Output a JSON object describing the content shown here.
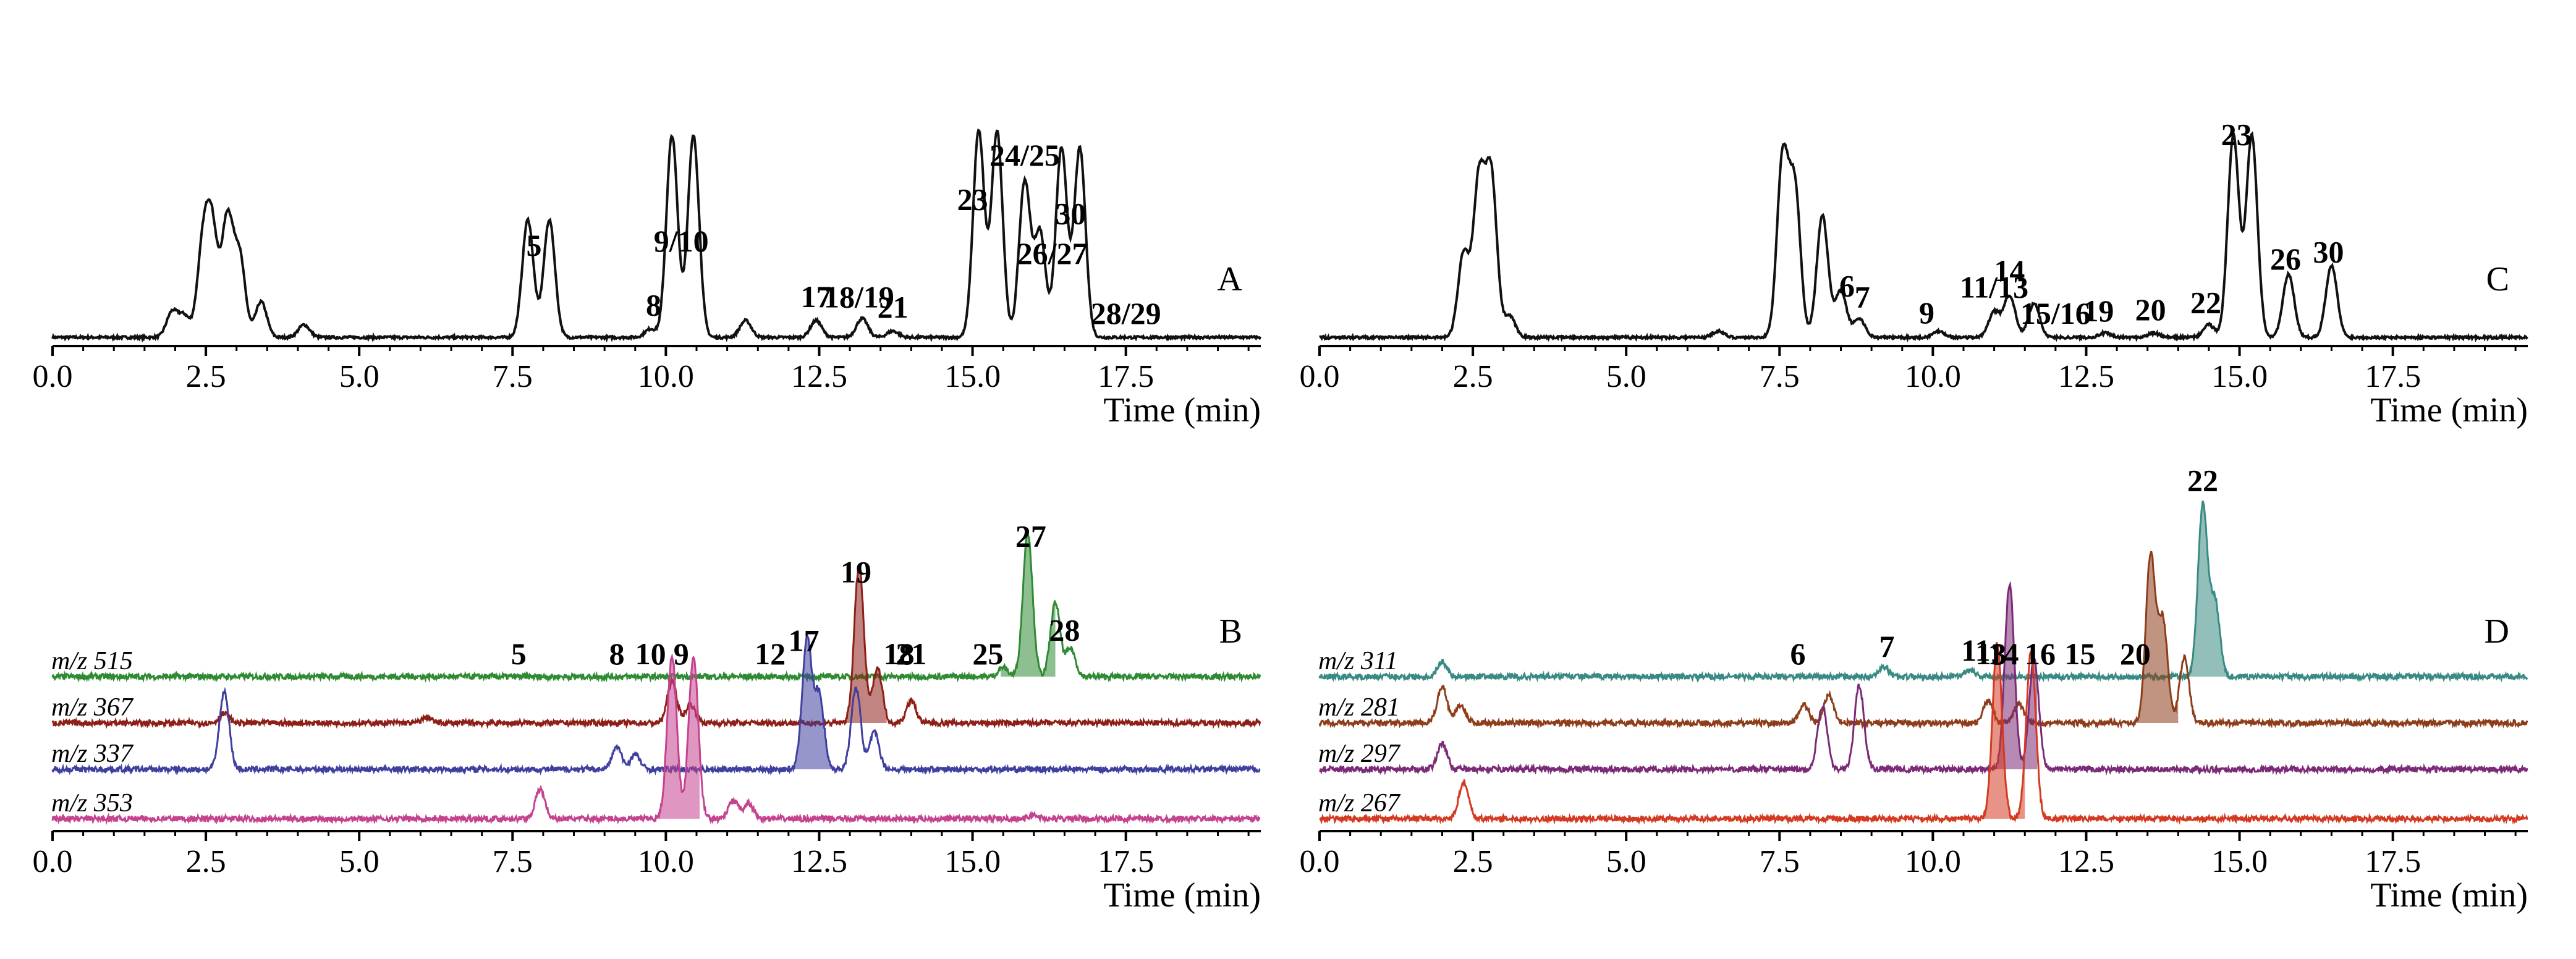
{
  "chart_data": [
    {
      "panel": "A",
      "type": "line",
      "xlabel": "Time (min)",
      "xlim": [
        0,
        19.7
      ],
      "xticks": [
        "0.0",
        "2.5",
        "5.0",
        "7.5",
        "10.0",
        "12.5",
        "15.0",
        "17.5"
      ],
      "peaks": [
        {
          "t": 1.95,
          "h": 0.12
        },
        {
          "t": 2.15,
          "h": 0.1
        },
        {
          "t": 2.45,
          "h": 0.41
        },
        {
          "t": 2.6,
          "h": 0.5
        },
        {
          "t": 2.85,
          "h": 0.56
        },
        {
          "t": 3.05,
          "h": 0.38
        },
        {
          "t": 3.4,
          "h": 0.17
        },
        {
          "t": 4.1,
          "h": 0.06
        },
        {
          "t": 7.75,
          "h": 0.56
        },
        {
          "t": 8.1,
          "h": 0.56
        },
        {
          "t": 9.75,
          "h": 0.04
        },
        {
          "t": 10.1,
          "h": 0.96
        },
        {
          "t": 10.45,
          "h": 0.96
        },
        {
          "t": 11.3,
          "h": 0.08
        },
        {
          "t": 12.45,
          "h": 0.08
        },
        {
          "t": 13.2,
          "h": 0.09
        },
        {
          "t": 13.7,
          "h": 0.03
        },
        {
          "t": 15.1,
          "h": 0.98
        },
        {
          "t": 15.4,
          "h": 0.98
        },
        {
          "t": 15.85,
          "h": 0.74
        },
        {
          "t": 16.1,
          "h": 0.5
        },
        {
          "t": 16.45,
          "h": 0.9
        },
        {
          "t": 16.75,
          "h": 0.9
        }
      ],
      "annotations": [
        {
          "text": "5",
          "t": 7.85
        },
        {
          "text": "8",
          "t": 9.8
        },
        {
          "text": "9/10",
          "t": 10.25
        },
        {
          "text": "17",
          "t": 12.45
        },
        {
          "text": "18/19",
          "t": 13.15
        },
        {
          "text": "21",
          "t": 13.7
        },
        {
          "text": "23",
          "t": 15.0
        },
        {
          "text": "24/25",
          "t": 15.85
        },
        {
          "text": "26/27",
          "t": 16.3
        },
        {
          "text": "30",
          "t": 16.6
        },
        {
          "text": "28/29",
          "t": 17.5
        }
      ]
    },
    {
      "panel": "B",
      "type": "line",
      "xlabel": "Time (min)",
      "xlim": [
        0,
        19.7
      ],
      "xticks": [
        "0.0",
        "2.5",
        "5.0",
        "7.5",
        "10.0",
        "12.5",
        "15.0",
        "17.5"
      ],
      "series": [
        {
          "name": "m/z 515",
          "color": "#2f8a34",
          "peaks": [
            {
              "t": 15.5,
              "h": 0.05
            },
            {
              "t": 15.9,
              "h": 0.78
            },
            {
              "t": 16.35,
              "h": 0.4
            },
            {
              "t": 16.6,
              "h": 0.15
            }
          ]
        },
        {
          "name": "m/z 367",
          "color": "#8e1f17",
          "peaks": [
            {
              "t": 2.8,
              "h": 0.05
            },
            {
              "t": 6.1,
              "h": 0.03
            },
            {
              "t": 10.1,
              "h": 0.22
            },
            {
              "t": 10.4,
              "h": 0.1
            },
            {
              "t": 13.15,
              "h": 0.85
            },
            {
              "t": 13.45,
              "h": 0.3
            },
            {
              "t": 14.0,
              "h": 0.12
            }
          ]
        },
        {
          "name": "m/z 337",
          "color": "#3f3f9f",
          "peaks": [
            {
              "t": 2.8,
              "h": 0.42
            },
            {
              "t": 9.2,
              "h": 0.12
            },
            {
              "t": 9.5,
              "h": 0.08
            },
            {
              "t": 12.3,
              "h": 0.7
            },
            {
              "t": 12.5,
              "h": 0.4
            },
            {
              "t": 13.1,
              "h": 0.44
            },
            {
              "t": 13.4,
              "h": 0.2
            }
          ]
        },
        {
          "name": "m/z 353",
          "color": "#c4428f",
          "peaks": [
            {
              "t": 7.95,
              "h": 0.16
            },
            {
              "t": 10.1,
              "h": 0.88
            },
            {
              "t": 10.45,
              "h": 0.88
            },
            {
              "t": 11.1,
              "h": 0.1
            },
            {
              "t": 11.35,
              "h": 0.08
            },
            {
              "t": 16.0,
              "h": 0.02
            }
          ]
        }
      ],
      "annotations": [
        {
          "text": "27",
          "t": 15.95
        },
        {
          "text": "28",
          "t": 16.5
        },
        {
          "text": "25",
          "t": 15.25
        },
        {
          "text": "19",
          "t": 13.1
        },
        {
          "text": "21",
          "t": 14.0
        },
        {
          "text": "17",
          "t": 12.25
        },
        {
          "text": "18",
          "t": 13.8
        },
        {
          "text": "9",
          "t": 10.25
        },
        {
          "text": "10",
          "t": 9.75
        },
        {
          "text": "8",
          "t": 9.2
        },
        {
          "text": "5",
          "t": 7.6
        },
        {
          "text": "12",
          "t": 11.7
        }
      ]
    },
    {
      "panel": "C",
      "type": "line",
      "xlabel": "Time (min)",
      "xlim": [
        0,
        19.7
      ],
      "xticks": [
        "0.0",
        "2.5",
        "5.0",
        "7.5",
        "10.0",
        "12.5",
        "15.0",
        "17.5"
      ],
      "peaks": [
        {
          "t": 2.35,
          "h": 0.4
        },
        {
          "t": 2.6,
          "h": 0.74
        },
        {
          "t": 2.8,
          "h": 0.76
        },
        {
          "t": 3.1,
          "h": 0.1
        },
        {
          "t": 6.5,
          "h": 0.03
        },
        {
          "t": 7.55,
          "h": 0.84
        },
        {
          "t": 7.75,
          "h": 0.7
        },
        {
          "t": 8.2,
          "h": 0.58
        },
        {
          "t": 8.5,
          "h": 0.22
        },
        {
          "t": 8.8,
          "h": 0.09
        },
        {
          "t": 10.1,
          "h": 0.03
        },
        {
          "t": 11.0,
          "h": 0.12
        },
        {
          "t": 11.25,
          "h": 0.2
        },
        {
          "t": 11.65,
          "h": 0.16
        },
        {
          "t": 12.8,
          "h": 0.02
        },
        {
          "t": 13.6,
          "h": 0.02
        },
        {
          "t": 14.5,
          "h": 0.06
        },
        {
          "t": 14.9,
          "h": 0.96
        },
        {
          "t": 15.2,
          "h": 0.96
        },
        {
          "t": 15.8,
          "h": 0.3
        },
        {
          "t": 16.5,
          "h": 0.34
        }
      ],
      "annotations": [
        {
          "text": "6",
          "t": 8.6
        },
        {
          "text": "7",
          "t": 8.85
        },
        {
          "text": "9",
          "t": 9.9
        },
        {
          "text": "11/13",
          "t": 11.0
        },
        {
          "text": "14",
          "t": 11.25
        },
        {
          "text": "15/16",
          "t": 12.0
        },
        {
          "text": "19",
          "t": 12.7
        },
        {
          "text": "20",
          "t": 13.55
        },
        {
          "text": "22",
          "t": 14.45
        },
        {
          "text": "23",
          "t": 14.95
        },
        {
          "text": "26",
          "t": 15.75
        },
        {
          "text": "30",
          "t": 16.45
        }
      ]
    },
    {
      "panel": "D",
      "type": "line",
      "xlabel": "Time (min)",
      "xlim": [
        0,
        19.7
      ],
      "xticks": [
        "0.0",
        "2.5",
        "5.0",
        "7.5",
        "10.0",
        "12.5",
        "15.0",
        "17.5"
      ],
      "series": [
        {
          "name": "m/z 311",
          "color": "#3a8a84",
          "peaks": [
            {
              "t": 2.0,
              "h": 0.08
            },
            {
              "t": 9.2,
              "h": 0.05
            },
            {
              "t": 10.6,
              "h": 0.04
            },
            {
              "t": 14.4,
              "h": 0.92
            },
            {
              "t": 14.6,
              "h": 0.4
            }
          ]
        },
        {
          "name": "m/z 281",
          "color": "#8e3d1a",
          "peaks": [
            {
              "t": 2.0,
              "h": 0.2
            },
            {
              "t": 2.3,
              "h": 0.1
            },
            {
              "t": 7.9,
              "h": 0.1
            },
            {
              "t": 8.3,
              "h": 0.15
            },
            {
              "t": 10.9,
              "h": 0.12
            },
            {
              "t": 11.4,
              "h": 0.1
            },
            {
              "t": 13.55,
              "h": 0.9
            },
            {
              "t": 13.75,
              "h": 0.55
            },
            {
              "t": 14.1,
              "h": 0.35
            }
          ]
        },
        {
          "name": "m/z 297",
          "color": "#7b2a76",
          "peaks": [
            {
              "t": 2.0,
              "h": 0.14
            },
            {
              "t": 8.2,
              "h": 0.34
            },
            {
              "t": 8.8,
              "h": 0.45
            },
            {
              "t": 11.25,
              "h": 1.0
            },
            {
              "t": 11.65,
              "h": 0.6
            }
          ]
        },
        {
          "name": "m/z 267",
          "color": "#d43a22",
          "peaks": [
            {
              "t": 2.35,
              "h": 0.2
            },
            {
              "t": 11.05,
              "h": 0.95
            },
            {
              "t": 11.6,
              "h": 0.9
            }
          ]
        }
      ],
      "annotations": [
        {
          "text": "22",
          "t": 14.4
        },
        {
          "text": "20",
          "t": 13.3
        },
        {
          "text": "14",
          "t": 11.15
        },
        {
          "text": "13",
          "t": 10.95
        },
        {
          "text": "16",
          "t": 11.75
        },
        {
          "text": "11",
          "t": 10.7
        },
        {
          "text": "6",
          "t": 7.8
        },
        {
          "text": "7",
          "t": 9.25
        },
        {
          "text": "15",
          "t": 12.4
        }
      ]
    }
  ]
}
